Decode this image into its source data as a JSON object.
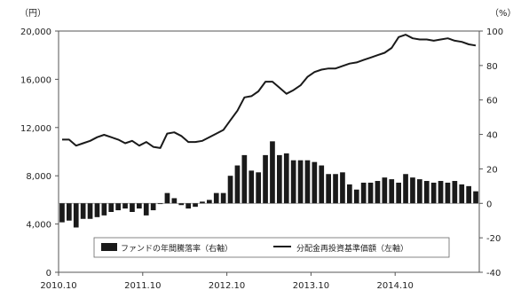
{
  "chart_data": {
    "type": "bar+line",
    "left_axis": {
      "unit": "（円）",
      "ticks": [
        "0",
        "4,000",
        "8,000",
        "12,000",
        "16,000",
        "20,000"
      ],
      "range": [
        0,
        20000
      ]
    },
    "right_axis": {
      "unit": "（%）",
      "ticks": [
        "-40",
        "-20",
        "0",
        "20",
        "40",
        "60",
        "80",
        "100"
      ],
      "range": [
        -40,
        100
      ]
    },
    "x_tick_labels": [
      "2010.10",
      "2011.10",
      "2012.10",
      "2013.10",
      "2014.10"
    ],
    "months": 60,
    "legend_position": "bottom-center",
    "series": [
      {
        "name": "ファンドの年間騰落率（右軸）",
        "type": "bar",
        "axis": "right",
        "values": [
          -11,
          -10,
          -14,
          -9,
          -9,
          -8,
          -7,
          -5,
          -4,
          -3,
          -5,
          -3,
          -7,
          -4,
          0,
          6,
          3,
          -1,
          -3,
          -2,
          1,
          2,
          6,
          6,
          16,
          22,
          28,
          19,
          18,
          28,
          36,
          28,
          29,
          25,
          25,
          25,
          24,
          22,
          17,
          17,
          18,
          11,
          8,
          12,
          12,
          13,
          15,
          14,
          12,
          17,
          15,
          14,
          13,
          12,
          13,
          12,
          13,
          11,
          10,
          7
        ]
      },
      {
        "name": "分配金再投資基準価額（左軸）",
        "type": "line",
        "axis": "left",
        "values": [
          11000,
          11000,
          10500,
          10700,
          10900,
          11200,
          11400,
          11200,
          11000,
          10700,
          10900,
          10500,
          10800,
          10400,
          10300,
          11500,
          11600,
          11300,
          10800,
          10800,
          10900,
          11200,
          11500,
          11800,
          12600,
          13400,
          14500,
          14600,
          15000,
          15800,
          15800,
          15300,
          14800,
          15100,
          15500,
          16200,
          16600,
          16800,
          16900,
          16900,
          17100,
          17300,
          17400,
          17600,
          17800,
          18000,
          18200,
          18600,
          19500,
          19700,
          19400,
          19300,
          19300,
          19200,
          19300,
          19400,
          19200,
          19100,
          18900,
          18800
        ]
      }
    ]
  }
}
